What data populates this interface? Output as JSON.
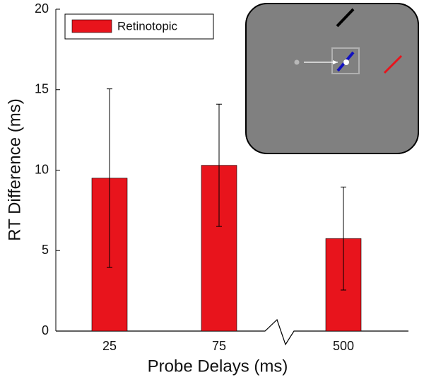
{
  "chart_data": {
    "type": "bar",
    "xlabel": "Probe Delays (ms)",
    "ylabel": "RT Difference (ms)",
    "categories": [
      "25",
      "75",
      "500"
    ],
    "series": [
      {
        "name": "Retinotopic",
        "color": "#e8141c",
        "values": [
          9.5,
          10.3,
          5.75
        ],
        "errors": [
          5.55,
          3.8,
          3.2
        ]
      }
    ],
    "ylim": [
      0,
      20
    ],
    "yticks": [
      0,
      5,
      10,
      15,
      20
    ],
    "legend": "upper left"
  }
}
